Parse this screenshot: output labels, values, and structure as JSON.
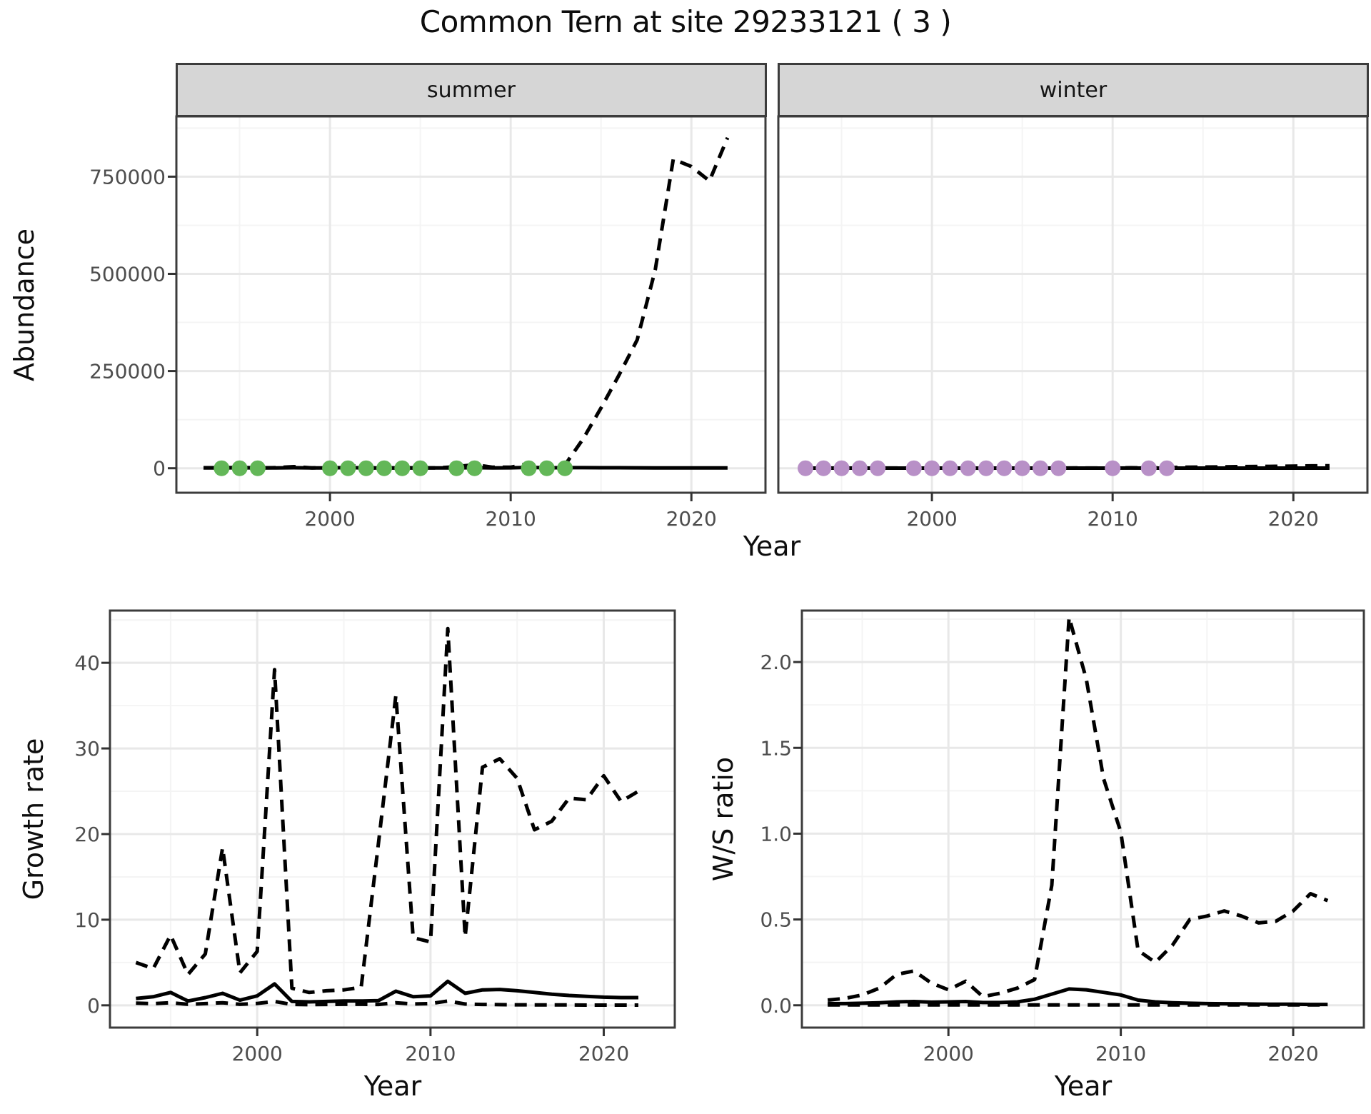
{
  "title": "Common Tern at site 29233121 ( 3 )",
  "labels": {
    "abundance": "Abundance",
    "year": "Year",
    "growth_rate": "Growth rate",
    "ws_ratio": "W/S ratio"
  },
  "facets": [
    {
      "label": "summer"
    },
    {
      "label": "winter"
    }
  ],
  "colors": {
    "summer_points": "#63b758",
    "winter_points": "#b890c7",
    "line": "#000000",
    "strip_bg": "#d6d6d6",
    "panel_border": "#3c3c3c",
    "grid_major": "#e8e8e8",
    "grid_minor": "#f4f4f4",
    "tick_text": "#4d4d4d",
    "tick_mark": "#333333"
  },
  "chart_data": [
    {
      "id": "abundance_summer",
      "type": "line",
      "facet": "summer",
      "xlabel": "Year",
      "ylabel": "Abundance",
      "xlim": [
        1991.5,
        2024.1
      ],
      "ylim": [
        -63000,
        905000
      ],
      "grid": true,
      "legend": "none",
      "xticks": {
        "values": [
          2000,
          2010,
          2020
        ],
        "labels": [
          "2000",
          "2010",
          "2020"
        ]
      },
      "yticks": {
        "values": [
          0,
          250000,
          500000,
          750000
        ],
        "labels": [
          "0",
          "250000",
          "500000",
          "750000"
        ]
      },
      "years": [
        1993,
        1994,
        1995,
        1996,
        1997,
        1998,
        1999,
        2000,
        2001,
        2002,
        2003,
        2004,
        2005,
        2006,
        2007,
        2008,
        2009,
        2010,
        2011,
        2012,
        2013,
        2014,
        2015,
        2016,
        2017,
        2018,
        2019,
        2020,
        2021,
        2022
      ],
      "series": [
        {
          "name": "estimate",
          "style": "solid",
          "values": [
            900,
            1000,
            1200,
            700,
            900,
            1200,
            800,
            1000,
            1800,
            700,
            600,
            700,
            700,
            800,
            900,
            1500,
            1000,
            1100,
            2200,
            1100,
            1400,
            1400,
            1300,
            1200,
            1100,
            1000,
            1000,
            900,
            900,
            900
          ]
        },
        {
          "name": "upper_ci",
          "style": "dashed",
          "values": [
            1200,
            1300,
            2000,
            1000,
            1500,
            4000,
            1000,
            1800,
            8000,
            900,
            800,
            900,
            900,
            1000,
            4000,
            9000,
            2500,
            2500,
            12000,
            2500,
            8000,
            75000,
            155000,
            240000,
            330000,
            510000,
            795000,
            776000,
            739000,
            850000
          ]
        }
      ],
      "points": {
        "name": "observed_counts",
        "color_key": "summer_points",
        "years": [
          1994,
          1995,
          1996,
          2000,
          2001,
          2002,
          2003,
          2004,
          2005,
          2007,
          2008,
          2011,
          2012,
          2013
        ],
        "values": [
          0,
          0,
          0,
          0,
          0,
          0,
          0,
          0,
          0,
          0,
          0,
          0,
          0,
          0
        ]
      }
    },
    {
      "id": "abundance_winter",
      "type": "line",
      "facet": "winter",
      "xlabel": "Year",
      "ylabel": "Abundance",
      "xlim": [
        1991.5,
        2024.1
      ],
      "ylim": [
        -63000,
        905000
      ],
      "grid": true,
      "legend": "none",
      "xticks": {
        "values": [
          2000,
          2010,
          2020
        ],
        "labels": [
          "2000",
          "2010",
          "2020"
        ]
      },
      "yticks": {
        "values": [
          0,
          250000,
          500000,
          750000
        ],
        "labels": [
          "0",
          "250000",
          "500000",
          "750000"
        ]
      },
      "years": [
        1993,
        1994,
        1995,
        1996,
        1997,
        1998,
        1999,
        2000,
        2001,
        2002,
        2003,
        2004,
        2005,
        2006,
        2007,
        2008,
        2009,
        2010,
        2011,
        2012,
        2013,
        2014,
        2015,
        2016,
        2017,
        2018,
        2019,
        2020,
        2021,
        2022
      ],
      "series": [
        {
          "name": "estimate",
          "style": "solid",
          "values": [
            300,
            300,
            350,
            300,
            300,
            350,
            300,
            350,
            400,
            300,
            250,
            300,
            300,
            300,
            350,
            400,
            350,
            350,
            500,
            400,
            400,
            400,
            400,
            350,
            350,
            300,
            300,
            300,
            300,
            300
          ]
        },
        {
          "name": "upper_ci",
          "style": "dashed",
          "values": [
            400,
            400,
            500,
            400,
            500,
            600,
            400,
            500,
            800,
            400,
            300,
            400,
            400,
            400,
            500,
            800,
            500,
            600,
            1200,
            800,
            1500,
            2500,
            3000,
            3500,
            4000,
            4500,
            5000,
            5500,
            6000,
            6500
          ]
        }
      ],
      "points": {
        "name": "observed_counts",
        "color_key": "winter_points",
        "years": [
          1993,
          1994,
          1995,
          1996,
          1997,
          1999,
          2000,
          2001,
          2002,
          2003,
          2004,
          2005,
          2006,
          2007,
          2010,
          2012,
          2013
        ],
        "values": [
          0,
          0,
          0,
          0,
          0,
          0,
          0,
          0,
          0,
          0,
          0,
          0,
          0,
          0,
          0,
          0,
          0
        ]
      }
    },
    {
      "id": "growth_rate",
      "type": "line",
      "xlabel": "Year",
      "ylabel": "Growth rate",
      "xlim": [
        1991.5,
        2024.1
      ],
      "ylim": [
        -2.6,
        46.1
      ],
      "grid": true,
      "legend": "none",
      "xticks": {
        "values": [
          2000,
          2010,
          2020
        ],
        "labels": [
          "2000",
          "2010",
          "2020"
        ]
      },
      "yticks": {
        "values": [
          0,
          10,
          20,
          30,
          40
        ],
        "labels": [
          "0",
          "10",
          "20",
          "30",
          "40"
        ]
      },
      "years": [
        1993,
        1994,
        1995,
        1996,
        1997,
        1998,
        1999,
        2000,
        2001,
        2002,
        2003,
        2004,
        2005,
        2006,
        2007,
        2008,
        2009,
        2010,
        2011,
        2012,
        2013,
        2014,
        2015,
        2016,
        2017,
        2018,
        2019,
        2020,
        2021,
        2022
      ],
      "series": [
        {
          "name": "estimate",
          "style": "solid",
          "values": [
            0.8,
            1.0,
            1.5,
            0.5,
            0.9,
            1.4,
            0.6,
            1.1,
            2.5,
            0.45,
            0.4,
            0.45,
            0.5,
            0.5,
            0.55,
            1.65,
            1.0,
            1.1,
            2.8,
            1.4,
            1.8,
            1.85,
            1.7,
            1.5,
            1.3,
            1.15,
            1.05,
            0.95,
            0.9,
            0.9
          ]
        },
        {
          "name": "lower_ci",
          "style": "dashed",
          "values": [
            0.25,
            0.2,
            0.3,
            0.12,
            0.2,
            0.3,
            0.12,
            0.22,
            0.45,
            0.1,
            0.08,
            0.1,
            0.12,
            0.12,
            0.1,
            0.3,
            0.15,
            0.2,
            0.5,
            0.15,
            0.1,
            0.08,
            0.06,
            0.05,
            0.04,
            0.04,
            0.03,
            0.03,
            0.03,
            0.03
          ]
        },
        {
          "name": "upper_ci",
          "style": "dashed",
          "values": [
            5.0,
            4.3,
            8.2,
            3.6,
            6.0,
            18.4,
            3.8,
            6.3,
            39.2,
            2.0,
            1.5,
            1.7,
            1.8,
            2.1,
            19.0,
            36.2,
            7.9,
            7.4,
            44.0,
            8.0,
            27.8,
            28.8,
            26.5,
            20.5,
            21.5,
            24.2,
            24.0,
            26.8,
            23.8,
            25.0
          ]
        }
      ]
    },
    {
      "id": "ws_ratio",
      "type": "line",
      "xlabel": "Year",
      "ylabel": "W/S ratio",
      "xlim": [
        1991.5,
        2024.1
      ],
      "ylim": [
        -0.13,
        2.3
      ],
      "grid": true,
      "legend": "none",
      "xticks": {
        "values": [
          2000,
          2010,
          2020
        ],
        "labels": [
          "2000",
          "2010",
          "2020"
        ]
      },
      "yticks": {
        "values": [
          0,
          0.5,
          1.0,
          1.5,
          2.0
        ],
        "labels": [
          "0.0",
          "0.5",
          "1.0",
          "1.5",
          "2.0"
        ]
      },
      "years": [
        1993,
        1994,
        1995,
        1996,
        1997,
        1998,
        1999,
        2000,
        2001,
        2002,
        2003,
        2004,
        2005,
        2006,
        2007,
        2008,
        2009,
        2010,
        2011,
        2012,
        2013,
        2014,
        2015,
        2016,
        2017,
        2018,
        2019,
        2020,
        2021,
        2022
      ],
      "series": [
        {
          "name": "estimate",
          "style": "solid",
          "values": [
            0.01,
            0.01,
            0.012,
            0.015,
            0.02,
            0.022,
            0.018,
            0.02,
            0.022,
            0.016,
            0.016,
            0.02,
            0.035,
            0.065,
            0.095,
            0.09,
            0.075,
            0.06,
            0.03,
            0.02,
            0.015,
            0.012,
            0.01,
            0.009,
            0.008,
            0.007,
            0.006,
            0.006,
            0.005,
            0.005
          ]
        },
        {
          "name": "lower_ci",
          "style": "dashed",
          "values": [
            0.002,
            0.002,
            0.002,
            0.002,
            0.002,
            0.002,
            0.002,
            0.002,
            0.002,
            0.002,
            0.002,
            0.002,
            0.002,
            0.002,
            0.002,
            0.002,
            0.002,
            0.002,
            0.002,
            0.002,
            0.002,
            0.002,
            0.002,
            0.002,
            0.002,
            0.002,
            0.002,
            0.002,
            0.002,
            0.002
          ]
        },
        {
          "name": "upper_ci",
          "style": "dashed",
          "values": [
            0.03,
            0.04,
            0.06,
            0.1,
            0.18,
            0.2,
            0.13,
            0.09,
            0.14,
            0.05,
            0.07,
            0.1,
            0.15,
            0.7,
            2.26,
            1.9,
            1.32,
            1.01,
            0.32,
            0.25,
            0.35,
            0.5,
            0.52,
            0.55,
            0.52,
            0.48,
            0.49,
            0.55,
            0.65,
            0.61
          ]
        }
      ]
    }
  ]
}
